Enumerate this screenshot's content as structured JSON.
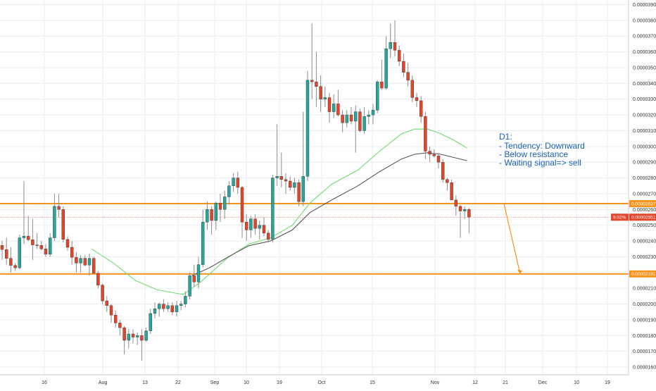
{
  "chart_data": {
    "type": "candlestick",
    "timeframe_note": "D1",
    "y_axis": {
      "ticks": [
        "0.00003900",
        "0.00003800",
        "0.00003700",
        "0.00003600",
        "0.00003500",
        "0.00003400",
        "0.00003300",
        "0.00003200",
        "0.00003100",
        "0.00003000",
        "0.00002900",
        "0.00002800",
        "0.00002700",
        "0.00002600",
        "0.00002500",
        "0.00002400",
        "0.00002300",
        "0.00002200",
        "0.00002100",
        "0.00002000",
        "0.00001900",
        "0.00001800",
        "0.00001700",
        "0.00001600"
      ],
      "ylim": [
        1.56e-05,
        3.92e-05
      ]
    },
    "x_axis": {
      "ticks": [
        "16",
        "Aug",
        "13",
        "22",
        "Sep",
        "10",
        "19",
        "Oct",
        "15",
        "Nov",
        "12",
        "21",
        "Dec",
        "10",
        "19"
      ]
    },
    "levels": [
      {
        "name": "resistance",
        "value": 2.637e-05,
        "label": "0.00002637",
        "color": "#f7931a"
      },
      {
        "name": "support",
        "value": 2.191e-05,
        "label": "0.00002191",
        "color": "#f7931a"
      }
    ],
    "current_price": {
      "value": 2.551e-05,
      "label": "0.00002551",
      "change": "9.02%",
      "color": "#e2452a"
    },
    "annotation": {
      "lines": [
        "D1:",
        "- Tendency: Downward",
        "- Below resistance",
        "- Waiting signal=> sell"
      ]
    },
    "candles": [
      {
        "o": 2.372e-05,
        "h": 2.401e-05,
        "l": 2.28e-05,
        "c": 2.346e-05
      },
      {
        "o": 2.346e-05,
        "h": 2.42e-05,
        "l": 2.25e-05,
        "c": 2.29e-05
      },
      {
        "o": 2.29e-05,
        "h": 2.36e-05,
        "l": 2.2e-05,
        "c": 2.245e-05
      },
      {
        "o": 2.245e-05,
        "h": 2.26e-05,
        "l": 2.21e-05,
        "c": 2.23e-05
      },
      {
        "o": 2.23e-05,
        "h": 2.44e-05,
        "l": 2.22e-05,
        "c": 2.42e-05
      },
      {
        "o": 2.42e-05,
        "h": 2.78e-05,
        "l": 2.38e-05,
        "c": 2.431e-05
      },
      {
        "o": 2.431e-05,
        "h": 2.56e-05,
        "l": 2.4e-05,
        "c": 2.408e-05
      },
      {
        "o": 2.408e-05,
        "h": 2.54e-05,
        "l": 2.28e-05,
        "c": 2.375e-05
      },
      {
        "o": 2.375e-05,
        "h": 2.45e-05,
        "l": 2.35e-05,
        "c": 2.372e-05
      },
      {
        "o": 2.372e-05,
        "h": 2.4e-05,
        "l": 2.34e-05,
        "c": 2.35e-05
      },
      {
        "o": 2.35e-05,
        "h": 2.38e-05,
        "l": 2.3e-05,
        "c": 2.316e-05
      },
      {
        "o": 2.316e-05,
        "h": 2.45e-05,
        "l": 2.3e-05,
        "c": 2.42e-05
      },
      {
        "o": 2.42e-05,
        "h": 2.7e-05,
        "l": 2.4e-05,
        "c": 2.62e-05
      },
      {
        "o": 2.62e-05,
        "h": 2.7e-05,
        "l": 2.55e-05,
        "c": 2.6e-05
      },
      {
        "o": 2.6e-05,
        "h": 2.62e-05,
        "l": 2.39e-05,
        "c": 2.41e-05
      },
      {
        "o": 2.41e-05,
        "h": 2.43e-05,
        "l": 2.34e-05,
        "c": 2.36e-05
      },
      {
        "o": 2.36e-05,
        "h": 2.4e-05,
        "l": 2.25e-05,
        "c": 2.296e-05
      },
      {
        "o": 2.296e-05,
        "h": 2.33e-05,
        "l": 2.2e-05,
        "c": 2.26e-05
      },
      {
        "o": 2.26e-05,
        "h": 2.31e-05,
        "l": 2.2e-05,
        "c": 2.29e-05
      },
      {
        "o": 2.29e-05,
        "h": 2.31e-05,
        "l": 2.24e-05,
        "c": 2.247e-05
      },
      {
        "o": 2.247e-05,
        "h": 2.32e-05,
        "l": 2.18e-05,
        "c": 2.29e-05
      },
      {
        "o": 2.29e-05,
        "h": 2.3e-05,
        "l": 2.19e-05,
        "c": 2.195e-05
      },
      {
        "o": 2.195e-05,
        "h": 2.21e-05,
        "l": 2.1e-05,
        "c": 2.12e-05
      },
      {
        "o": 2.12e-05,
        "h": 2.13e-05,
        "l": 2e-05,
        "c": 2.02e-05
      },
      {
        "o": 2.02e-05,
        "h": 2.05e-05,
        "l": 1.95e-05,
        "c": 1.99e-05
      },
      {
        "o": 1.99e-05,
        "h": 2e-05,
        "l": 1.88e-05,
        "c": 1.93e-05
      },
      {
        "o": 1.93e-05,
        "h": 1.96e-05,
        "l": 1.85e-05,
        "c": 1.88e-05
      },
      {
        "o": 1.88e-05,
        "h": 1.9e-05,
        "l": 1.8e-05,
        "c": 1.85e-05
      },
      {
        "o": 1.85e-05,
        "h": 1.86e-05,
        "l": 1.68e-05,
        "c": 1.77e-05
      },
      {
        "o": 1.77e-05,
        "h": 1.84e-05,
        "l": 1.72e-05,
        "c": 1.81e-05
      },
      {
        "o": 1.81e-05,
        "h": 1.84e-05,
        "l": 1.75e-05,
        "c": 1.79e-05
      },
      {
        "o": 1.79e-05,
        "h": 1.82e-05,
        "l": 1.74e-05,
        "c": 1.8e-05
      },
      {
        "o": 1.8e-05,
        "h": 1.84e-05,
        "l": 1.64e-05,
        "c": 1.77e-05
      },
      {
        "o": 1.77e-05,
        "h": 1.85e-05,
        "l": 1.76e-05,
        "c": 1.83e-05
      },
      {
        "o": 1.83e-05,
        "h": 1.97e-05,
        "l": 1.81e-05,
        "c": 1.94e-05
      },
      {
        "o": 1.94e-05,
        "h": 2.01e-05,
        "l": 1.91e-05,
        "c": 1.97e-05
      },
      {
        "o": 1.97e-05,
        "h": 2.01e-05,
        "l": 1.92e-05,
        "c": 2e-05
      },
      {
        "o": 2e-05,
        "h": 2.03e-05,
        "l": 1.95e-05,
        "c": 1.97e-05
      },
      {
        "o": 1.97e-05,
        "h": 2.01e-05,
        "l": 1.95e-05,
        "c": 1.99e-05
      },
      {
        "o": 1.99e-05,
        "h": 2.01e-05,
        "l": 1.93e-05,
        "c": 1.95e-05
      },
      {
        "o": 1.95e-05,
        "h": 2.02e-05,
        "l": 1.92e-05,
        "c": 1.99e-05
      },
      {
        "o": 1.99e-05,
        "h": 2.02e-05,
        "l": 1.96e-05,
        "c": 2e-05
      },
      {
        "o": 2e-05,
        "h": 2.08e-05,
        "l": 1.98e-05,
        "c": 2.05e-05
      },
      {
        "o": 2.05e-05,
        "h": 2.2e-05,
        "l": 2.03e-05,
        "c": 2.18e-05
      },
      {
        "o": 2.18e-05,
        "h": 2.25e-05,
        "l": 2.11e-05,
        "c": 2.14e-05
      },
      {
        "o": 2.14e-05,
        "h": 2.3e-05,
        "l": 2.1e-05,
        "c": 2.25e-05
      },
      {
        "o": 2.25e-05,
        "h": 2.6e-05,
        "l": 2.23e-05,
        "c": 2.52e-05
      },
      {
        "o": 2.52e-05,
        "h": 2.65e-05,
        "l": 2.47e-05,
        "c": 2.6e-05
      },
      {
        "o": 2.6e-05,
        "h": 2.62e-05,
        "l": 2.44e-05,
        "c": 2.53e-05
      },
      {
        "o": 2.53e-05,
        "h": 2.65e-05,
        "l": 2.47e-05,
        "c": 2.64e-05
      },
      {
        "o": 2.64e-05,
        "h": 2.7e-05,
        "l": 2.52e-05,
        "c": 2.6e-05
      },
      {
        "o": 2.6e-05,
        "h": 2.72e-05,
        "l": 2.54e-05,
        "c": 2.68e-05
      },
      {
        "o": 2.68e-05,
        "h": 2.78e-05,
        "l": 2.63e-05,
        "c": 2.75e-05
      },
      {
        "o": 2.75e-05,
        "h": 2.83e-05,
        "l": 2.71e-05,
        "c": 2.8e-05
      },
      {
        "o": 2.8e-05,
        "h": 2.84e-05,
        "l": 2.7e-05,
        "c": 2.74e-05
      },
      {
        "o": 2.74e-05,
        "h": 2.75e-05,
        "l": 2.42e-05,
        "c": 2.52e-05
      },
      {
        "o": 2.52e-05,
        "h": 2.57e-05,
        "l": 2.4e-05,
        "c": 2.47e-05
      },
      {
        "o": 2.47e-05,
        "h": 2.56e-05,
        "l": 2.42e-05,
        "c": 2.54e-05
      },
      {
        "o": 2.54e-05,
        "h": 2.57e-05,
        "l": 2.44e-05,
        "c": 2.48e-05
      },
      {
        "o": 2.48e-05,
        "h": 2.53e-05,
        "l": 2.41e-05,
        "c": 2.5e-05
      },
      {
        "o": 2.5e-05,
        "h": 2.55e-05,
        "l": 2.43e-05,
        "c": 2.45e-05
      },
      {
        "o": 2.45e-05,
        "h": 2.47e-05,
        "l": 2.39e-05,
        "c": 2.41e-05
      },
      {
        "o": 2.41e-05,
        "h": 2.82e-05,
        "l": 2.39e-05,
        "c": 2.8e-05
      },
      {
        "o": 2.8e-05,
        "h": 3.14e-05,
        "l": 2.75e-05,
        "c": 2.81e-05
      },
      {
        "o": 2.81e-05,
        "h": 2.96e-05,
        "l": 2.74e-05,
        "c": 2.79e-05
      },
      {
        "o": 2.79e-05,
        "h": 2.83e-05,
        "l": 2.7e-05,
        "c": 2.78e-05
      },
      {
        "o": 2.78e-05,
        "h": 2.81e-05,
        "l": 2.72e-05,
        "c": 2.74e-05
      },
      {
        "o": 2.74e-05,
        "h": 2.8e-05,
        "l": 2.7e-05,
        "c": 2.77e-05
      },
      {
        "o": 2.77e-05,
        "h": 2.79e-05,
        "l": 2.62e-05,
        "c": 2.65e-05
      },
      {
        "o": 2.65e-05,
        "h": 3.22e-05,
        "l": 2.62e-05,
        "c": 2.81e-05
      },
      {
        "o": 2.81e-05,
        "h": 3.48e-05,
        "l": 2.78e-05,
        "c": 3.42e-05
      },
      {
        "o": 3.42e-05,
        "h": 3.78e-05,
        "l": 3.3e-05,
        "c": 3.41e-05
      },
      {
        "o": 3.41e-05,
        "h": 3.6e-05,
        "l": 3.25e-05,
        "c": 3.38e-05
      },
      {
        "o": 3.38e-05,
        "h": 3.45e-05,
        "l": 3.22e-05,
        "c": 3.3e-05
      },
      {
        "o": 3.3e-05,
        "h": 3.38e-05,
        "l": 3.25e-05,
        "c": 3.31e-05
      },
      {
        "o": 3.31e-05,
        "h": 3.34e-05,
        "l": 3.15e-05,
        "c": 3.22e-05
      },
      {
        "o": 3.22e-05,
        "h": 3.33e-05,
        "l": 3.18e-05,
        "c": 3.27e-05
      },
      {
        "o": 3.27e-05,
        "h": 3.36e-05,
        "l": 3.19e-05,
        "c": 3.2e-05
      },
      {
        "o": 3.2e-05,
        "h": 3.23e-05,
        "l": 3.09e-05,
        "c": 3.15e-05
      },
      {
        "o": 3.15e-05,
        "h": 3.23e-05,
        "l": 3.12e-05,
        "c": 3.2e-05
      },
      {
        "o": 3.2e-05,
        "h": 3.25e-05,
        "l": 3.14e-05,
        "c": 3.16e-05
      },
      {
        "o": 3.16e-05,
        "h": 3.26e-05,
        "l": 2.96e-05,
        "c": 3.22e-05
      },
      {
        "o": 3.22e-05,
        "h": 3.24e-05,
        "l": 3.09e-05,
        "c": 3.1e-05
      },
      {
        "o": 3.1e-05,
        "h": 3.25e-05,
        "l": 3.08e-05,
        "c": 3.19e-05
      },
      {
        "o": 3.19e-05,
        "h": 3.23e-05,
        "l": 3.14e-05,
        "c": 3.2e-05
      },
      {
        "o": 3.2e-05,
        "h": 3.27e-05,
        "l": 3.14e-05,
        "c": 3.23e-05
      },
      {
        "o": 3.23e-05,
        "h": 3.42e-05,
        "l": 3.21e-05,
        "c": 3.41e-05
      },
      {
        "o": 3.41e-05,
        "h": 3.55e-05,
        "l": 3.36e-05,
        "c": 3.37e-05
      },
      {
        "o": 3.37e-05,
        "h": 3.7e-05,
        "l": 3.36e-05,
        "c": 3.62e-05
      },
      {
        "o": 3.62e-05,
        "h": 3.78e-05,
        "l": 3.56e-05,
        "c": 3.66e-05
      },
      {
        "o": 3.66e-05,
        "h": 3.8e-05,
        "l": 3.57e-05,
        "c": 3.61e-05
      },
      {
        "o": 3.61e-05,
        "h": 3.64e-05,
        "l": 3.51e-05,
        "c": 3.54e-05
      },
      {
        "o": 3.54e-05,
        "h": 3.59e-05,
        "l": 3.44e-05,
        "c": 3.47e-05
      },
      {
        "o": 3.47e-05,
        "h": 3.53e-05,
        "l": 3.38e-05,
        "c": 3.42e-05
      },
      {
        "o": 3.42e-05,
        "h": 3.45e-05,
        "l": 3.28e-05,
        "c": 3.31e-05
      },
      {
        "o": 3.31e-05,
        "h": 3.34e-05,
        "l": 3.25e-05,
        "c": 3.29e-05
      },
      {
        "o": 3.29e-05,
        "h": 3.32e-05,
        "l": 3.15e-05,
        "c": 3.19e-05
      },
      {
        "o": 3.19e-05,
        "h": 3.22e-05,
        "l": 2.92e-05,
        "c": 2.97e-05
      },
      {
        "o": 2.97e-05,
        "h": 3e-05,
        "l": 2.9e-05,
        "c": 2.95e-05
      },
      {
        "o": 2.95e-05,
        "h": 2.98e-05,
        "l": 2.93e-05,
        "c": 2.94e-05
      },
      {
        "o": 2.94e-05,
        "h": 2.96e-05,
        "l": 2.86e-05,
        "c": 2.9e-05
      },
      {
        "o": 2.9e-05,
        "h": 2.92e-05,
        "l": 2.77e-05,
        "c": 2.79e-05
      },
      {
        "o": 2.79e-05,
        "h": 2.8e-05,
        "l": 2.72e-05,
        "c": 2.77e-05
      },
      {
        "o": 2.77e-05,
        "h": 2.79e-05,
        "l": 2.66e-05,
        "c": 2.66e-05
      },
      {
        "o": 2.66e-05,
        "h": 2.69e-05,
        "l": 2.56e-05,
        "c": 2.62e-05
      },
      {
        "o": 2.62e-05,
        "h": 2.63e-05,
        "l": 2.42e-05,
        "c": 2.59e-05
      },
      {
        "o": 2.59e-05,
        "h": 2.62e-05,
        "l": 2.54e-05,
        "c": 2.6e-05
      },
      {
        "o": 2.6e-05,
        "h": 2.61e-05,
        "l": 2.45e-05,
        "c": 2.551e-05
      }
    ],
    "moving_averages": [
      {
        "name": "ma-fast",
        "color": "#6fdc6f",
        "values": [
          {
            "i": 21,
            "v": 2.35e-05
          },
          {
            "i": 26,
            "v": 2.26e-05
          },
          {
            "i": 31,
            "v": 2.15e-05
          },
          {
            "i": 36,
            "v": 2.09e-05
          },
          {
            "i": 42,
            "v": 2.06e-05
          },
          {
            "i": 46,
            "v": 2.14e-05
          },
          {
            "i": 52,
            "v": 2.29e-05
          },
          {
            "i": 57,
            "v": 2.38e-05
          },
          {
            "i": 62,
            "v": 2.42e-05
          },
          {
            "i": 67,
            "v": 2.5e-05
          },
          {
            "i": 71,
            "v": 2.64e-05
          },
          {
            "i": 76,
            "v": 2.76e-05
          },
          {
            "i": 82,
            "v": 2.85e-05
          },
          {
            "i": 87,
            "v": 2.97e-05
          },
          {
            "i": 92,
            "v": 3.08e-05
          },
          {
            "i": 95,
            "v": 3.11e-05
          },
          {
            "i": 98,
            "v": 3.11e-05
          },
          {
            "i": 101,
            "v": 3.08e-05
          },
          {
            "i": 104,
            "v": 3.04e-05
          },
          {
            "i": 107,
            "v": 2.99e-05
          }
        ]
      },
      {
        "name": "ma-slow",
        "color": "#555555",
        "values": [
          {
            "i": 44,
            "v": 2.18e-05
          },
          {
            "i": 48,
            "v": 2.23e-05
          },
          {
            "i": 53,
            "v": 2.31e-05
          },
          {
            "i": 57,
            "v": 2.37e-05
          },
          {
            "i": 62,
            "v": 2.4e-05
          },
          {
            "i": 67,
            "v": 2.47e-05
          },
          {
            "i": 71,
            "v": 2.58e-05
          },
          {
            "i": 76,
            "v": 2.66e-05
          },
          {
            "i": 82,
            "v": 2.75e-05
          },
          {
            "i": 87,
            "v": 2.84e-05
          },
          {
            "i": 92,
            "v": 2.92e-05
          },
          {
            "i": 95,
            "v": 2.95e-05
          },
          {
            "i": 98,
            "v": 2.96e-05
          },
          {
            "i": 101,
            "v": 2.95e-05
          },
          {
            "i": 104,
            "v": 2.93e-05
          },
          {
            "i": 107,
            "v": 2.91e-05
          }
        ]
      }
    ],
    "projection": {
      "from_index": 110,
      "from_value": 2.637e-05,
      "to_index": 114,
      "to_value": 2.191e-05,
      "color": "#f7931a"
    },
    "colors": {
      "up": "#26a69a",
      "down": "#e2452a",
      "wick": "#8c8c8c",
      "grid": "#e9eef3",
      "axis_text": "#333333"
    }
  }
}
